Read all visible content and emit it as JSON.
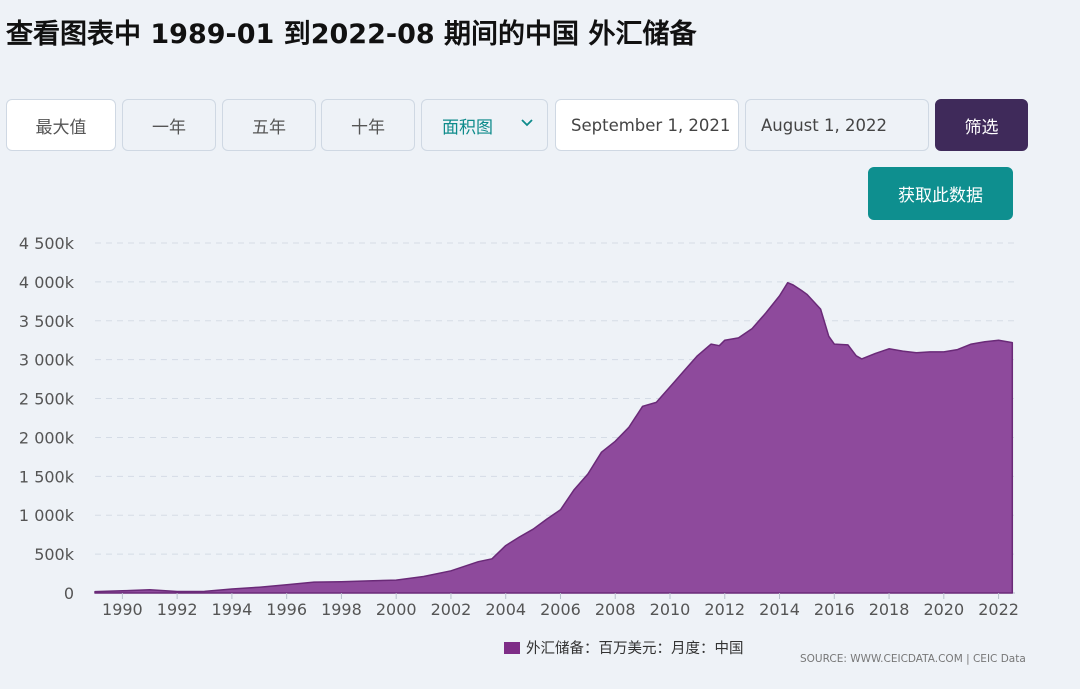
{
  "page": {
    "title": "查看图表中 1989-01 到2022-08 期间的中国 外汇储备"
  },
  "controls": {
    "max_label": "最大值",
    "one_year_label": "一年",
    "five_year_label": "五年",
    "ten_year_label": "十年",
    "chart_type_value": "面积图",
    "start_date_value": "September 1, 2021",
    "end_date_value": "August 1, 2022",
    "filter_label": "筛选",
    "get_data_label": "获取此数据"
  },
  "legend": {
    "label": "外汇储备：百万美元：月度：中国"
  },
  "source": {
    "text": "SOURCE: WWW.CEICDATA.COM | CEIC Data"
  },
  "colors": {
    "series_fill": "#8e4a9c",
    "series_stroke": "#6a2a78",
    "legend_swatch": "#7e2d87",
    "filter_button": "#3f2a5a",
    "get_data_button": "#0e8f8f"
  },
  "chart_data": {
    "type": "area",
    "title": "",
    "xlabel": "",
    "ylabel": "",
    "xlim": [
      1989.0,
      2022.6
    ],
    "ylim": [
      0,
      4500000
    ],
    "y_ticks": [
      0,
      500000,
      1000000,
      1500000,
      2000000,
      2500000,
      3000000,
      3500000,
      4000000,
      4500000
    ],
    "y_tick_labels": [
      "0",
      "500k",
      "1 000k",
      "1 500k",
      "2 000k",
      "2 500k",
      "3 000k",
      "3 500k",
      "4 000k",
      "4 500k"
    ],
    "x_ticks": [
      1990,
      1992,
      1994,
      1996,
      1998,
      2000,
      2002,
      2004,
      2006,
      2008,
      2010,
      2012,
      2014,
      2016,
      2018,
      2020,
      2022
    ],
    "x_tick_labels": [
      "1990",
      "1992",
      "1994",
      "1996",
      "1998",
      "2000",
      "2002",
      "2004",
      "2006",
      "2008",
      "2010",
      "2012",
      "2014",
      "2016",
      "2018",
      "2020",
      "2022"
    ],
    "grid": true,
    "legend_position": "bottom",
    "series": [
      {
        "name": "外汇储备：百万美元：月度：中国",
        "x": [
          1989.0,
          1990.0,
          1991.0,
          1992.0,
          1993.0,
          1994.0,
          1995.0,
          1996.0,
          1997.0,
          1998.0,
          1999.0,
          2000.0,
          2001.0,
          2002.0,
          2003.0,
          2003.5,
          2004.0,
          2004.5,
          2005.0,
          2005.5,
          2006.0,
          2006.5,
          2007.0,
          2007.5,
          2008.0,
          2008.5,
          2009.0,
          2009.5,
          2010.0,
          2010.5,
          2011.0,
          2011.5,
          2011.8,
          2012.0,
          2012.5,
          2013.0,
          2013.5,
          2014.0,
          2014.3,
          2014.5,
          2014.8,
          2015.0,
          2015.5,
          2015.8,
          2016.0,
          2016.5,
          2016.8,
          2017.0,
          2017.5,
          2018.0,
          2018.5,
          2019.0,
          2019.5,
          2020.0,
          2020.5,
          2021.0,
          2021.5,
          2022.0,
          2022.5
        ],
        "values": [
          18000,
          28000,
          43000,
          19000,
          21000,
          52000,
          74000,
          105000,
          140000,
          145000,
          155000,
          166000,
          212000,
          286000,
          403000,
          440000,
          610000,
          720000,
          820000,
          950000,
          1070000,
          1330000,
          1530000,
          1810000,
          1950000,
          2130000,
          2400000,
          2450000,
          2650000,
          2850000,
          3050000,
          3200000,
          3180000,
          3250000,
          3280000,
          3400000,
          3600000,
          3820000,
          3990000,
          3960000,
          3890000,
          3840000,
          3650000,
          3300000,
          3200000,
          3190000,
          3050000,
          3010000,
          3080000,
          3140000,
          3110000,
          3090000,
          3100000,
          3100000,
          3130000,
          3200000,
          3230000,
          3250000,
          3220000
        ]
      }
    ]
  }
}
